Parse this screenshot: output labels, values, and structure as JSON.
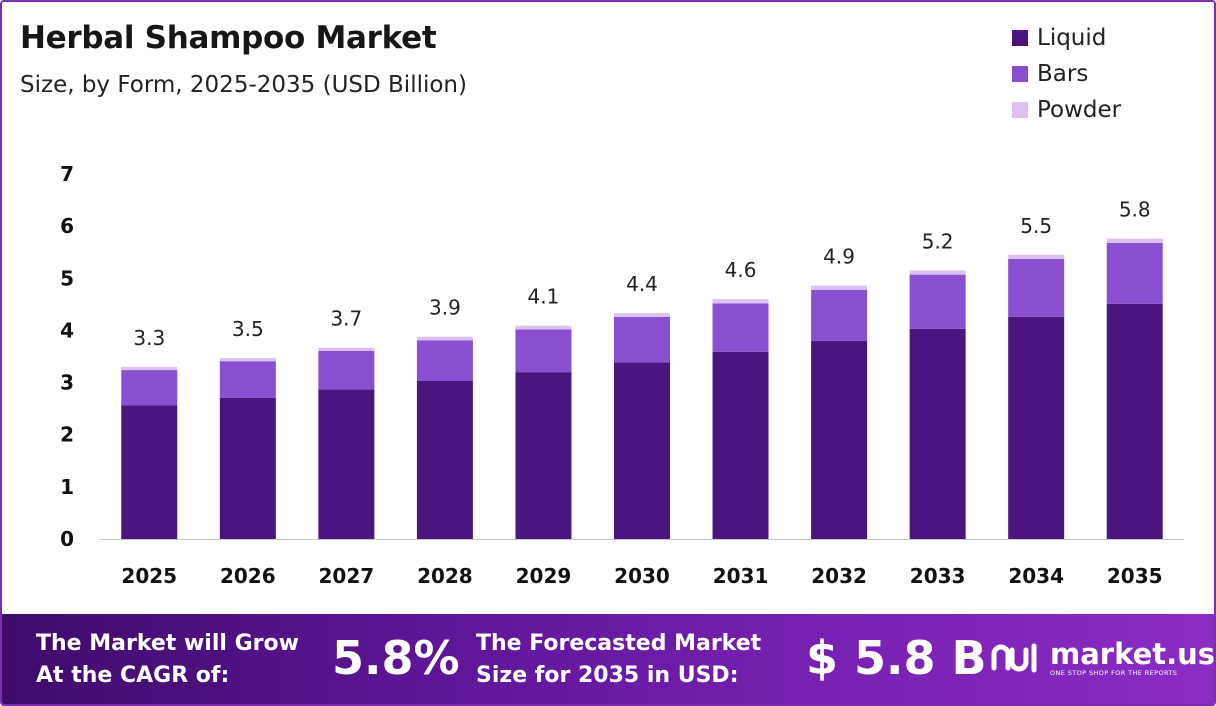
{
  "title": "Herbal Shampoo Market",
  "subtitle": "Size, by Form, 2025-2035 (USD Billion)",
  "legend": [
    {
      "name": "Liquid",
      "color": "#4b1580"
    },
    {
      "name": "Bars",
      "color": "#8a4fd0"
    },
    {
      "name": "Powder",
      "color": "#dcc0f0"
    }
  ],
  "chart_data": {
    "type": "bar",
    "stacked": true,
    "categories": [
      "2025",
      "2026",
      "2027",
      "2028",
      "2029",
      "2030",
      "2031",
      "2032",
      "2033",
      "2034",
      "2035"
    ],
    "series": [
      {
        "name": "Liquid",
        "color": "#4b1580",
        "values": [
          2.56,
          2.71,
          2.87,
          3.03,
          3.2,
          3.39,
          3.59,
          3.8,
          4.03,
          4.26,
          4.51
        ]
      },
      {
        "name": "Bars",
        "color": "#8a4fd0",
        "values": [
          0.68,
          0.7,
          0.74,
          0.78,
          0.82,
          0.87,
          0.93,
          0.98,
          1.04,
          1.11,
          1.17
        ]
      },
      {
        "name": "Powder",
        "color": "#dcc0f0",
        "values": [
          0.06,
          0.06,
          0.06,
          0.07,
          0.07,
          0.07,
          0.08,
          0.08,
          0.08,
          0.08,
          0.08
        ]
      }
    ],
    "totals_labels": [
      "3.3",
      "3.5",
      "3.7",
      "3.9",
      "4.1",
      "4.4",
      "4.6",
      "4.9",
      "5.2",
      "5.5",
      "5.8"
    ],
    "yticks": [
      0,
      1,
      2,
      3,
      4,
      5,
      6,
      7
    ],
    "ylim": [
      0,
      7
    ],
    "grid": false,
    "legend_position": "top-right"
  },
  "footer": {
    "cagr_text_line1": "The Market will Grow",
    "cagr_text_line2": "At the CAGR of:",
    "cagr_value": "5.8%",
    "size_text_line1": "The Forecasted Market",
    "size_text_line2": "Size for 2035 in USD:",
    "size_value": "$ 5.8 B",
    "logo_name": "market.us",
    "logo_tagline": "ONE STOP SHOP FOR THE REPORTS"
  }
}
